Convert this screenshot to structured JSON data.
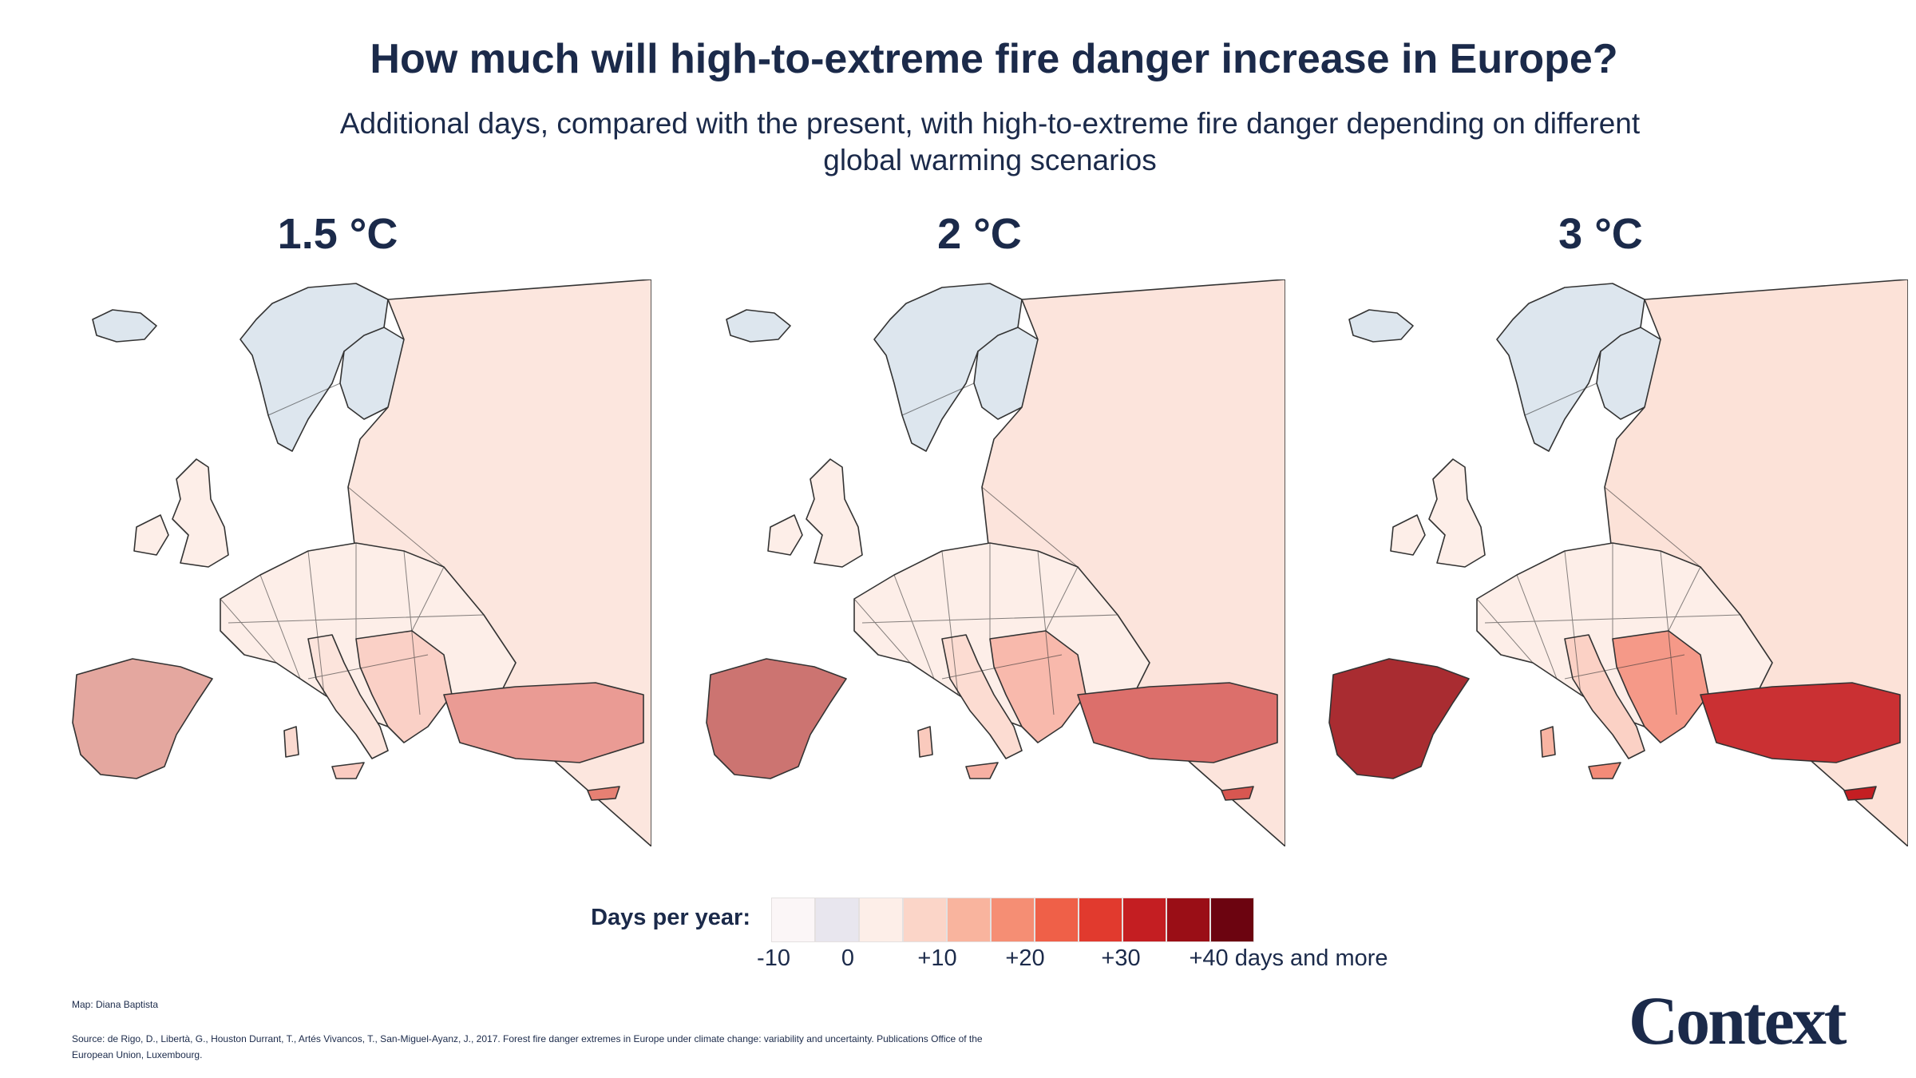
{
  "header": {
    "title": "How much will high-to-extreme fire danger increase in Europe?",
    "subtitle": "Additional days, compared with the present, with high-to-extreme fire danger depending on different global warming scenarios"
  },
  "panels": [
    {
      "label": "1.5 °C",
      "scenario_intensity": 0.35
    },
    {
      "label": "2 °C",
      "scenario_intensity": 0.62
    },
    {
      "label": "3 °C",
      "scenario_intensity": 1.0
    }
  ],
  "legend": {
    "label": "Days per year:",
    "colors": [
      "#fbf6f7",
      "#e8e6ee",
      "#fdeee8",
      "#fbd5c8",
      "#f9b49e",
      "#f58e74",
      "#ef6048",
      "#e13a2e",
      "#c41e22",
      "#9a0e16",
      "#6c0410"
    ],
    "ticks": [
      "-10",
      "0",
      "+10",
      "+20",
      "+30",
      "+40 days and more"
    ]
  },
  "footer": {
    "credit": "Map: Diana Baptista",
    "source": "Source: de Rigo, D., Libertà, G., Houston Durrant, T., Artés Vivancos, T., San-Miguel-Ayanz, J., 2017. Forest fire danger extremes in Europe under climate change: variability and uncertainty. Publications Office of the European Union, Luxembourg.",
    "logo": "Context"
  },
  "colors": {
    "text": "#1b2a4a",
    "land_base": "#fdeee8",
    "cool": "#dde6ee",
    "border": "#333333"
  }
}
